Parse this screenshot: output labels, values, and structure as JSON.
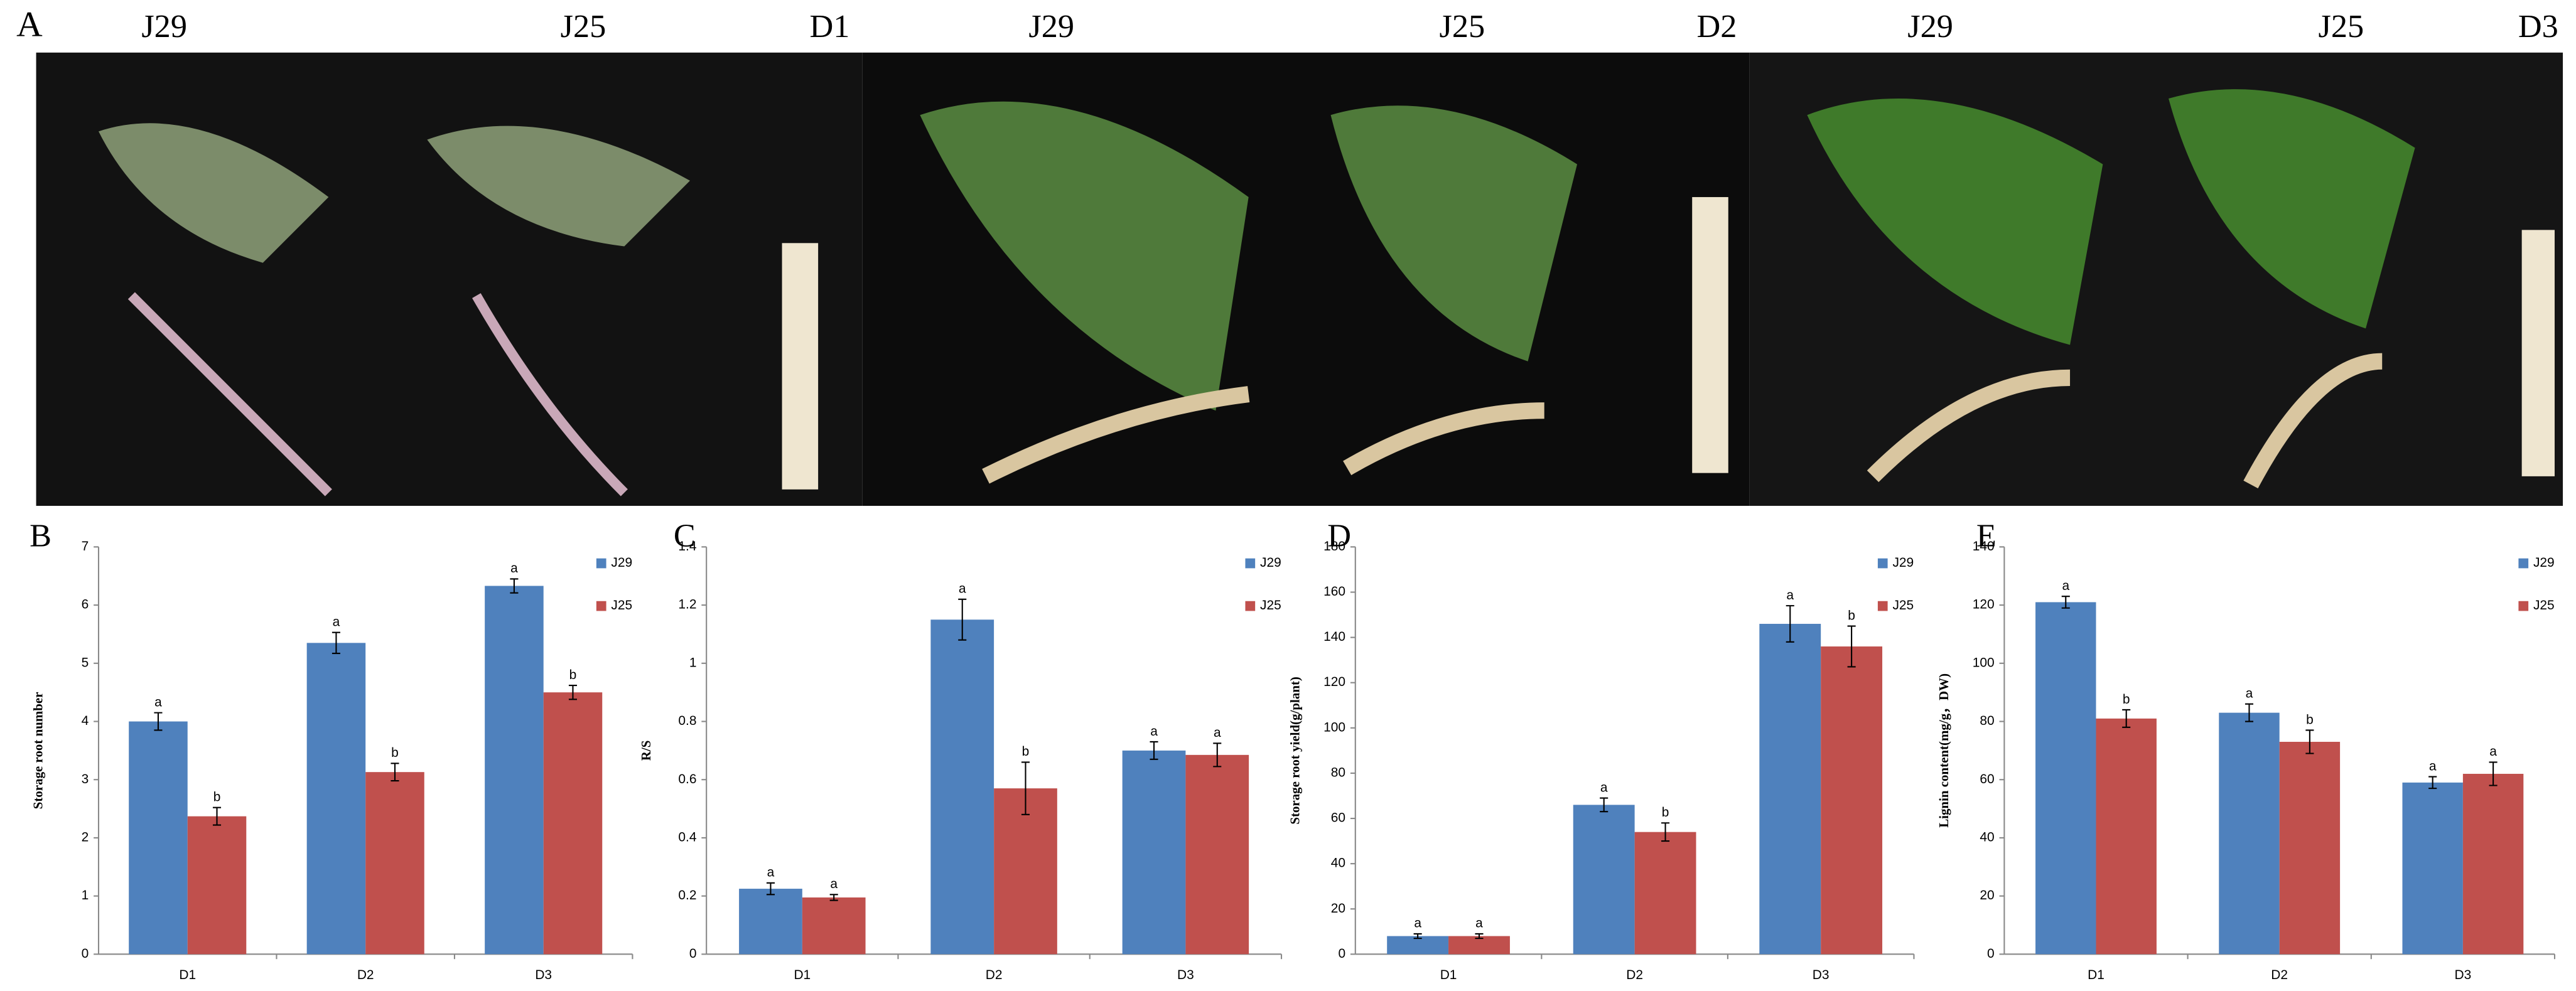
{
  "photo_panel": {
    "label": "A",
    "captions": [
      "J29",
      "J25",
      "D1",
      "J29",
      "J25",
      "D2",
      "J29",
      "J25",
      "D3"
    ]
  },
  "chart_data": [
    {
      "type": "bar",
      "panel": "B",
      "ylabel": "Storage root number",
      "categories": [
        "D1",
        "D2",
        "D3"
      ],
      "series": [
        {
          "name": "J29",
          "color": "#4f81bd",
          "values": [
            4.0,
            5.35,
            6.33
          ],
          "errors": [
            0.15,
            0.18,
            0.12
          ],
          "labels": [
            "a",
            "a",
            "a"
          ]
        },
        {
          "name": "J25",
          "color": "#c0504d",
          "values": [
            2.37,
            3.13,
            4.5
          ],
          "errors": [
            0.15,
            0.15,
            0.12
          ],
          "labels": [
            "b",
            "b",
            "b"
          ]
        }
      ],
      "ylim": [
        0,
        7
      ],
      "yticks": [
        0,
        1,
        2,
        3,
        4,
        5,
        6,
        7
      ],
      "legend": "upper right"
    },
    {
      "type": "bar",
      "panel": "C",
      "ylabel": "R/S",
      "categories": [
        "D1",
        "D2",
        "D3"
      ],
      "series": [
        {
          "name": "J29",
          "color": "#4f81bd",
          "values": [
            0.225,
            1.15,
            0.7
          ],
          "errors": [
            0.02,
            0.07,
            0.03
          ],
          "labels": [
            "a",
            "a",
            "a"
          ]
        },
        {
          "name": "J25",
          "color": "#c0504d",
          "values": [
            0.195,
            0.57,
            0.685
          ],
          "errors": [
            0.01,
            0.09,
            0.04
          ],
          "labels": [
            "a",
            "b",
            "a"
          ]
        }
      ],
      "ylim": [
        0,
        1.4
      ],
      "yticks": [
        0,
        0.2,
        0.4,
        0.6,
        0.8,
        1,
        1.2,
        1.4
      ],
      "legend": "upper right"
    },
    {
      "type": "bar",
      "panel": "D",
      "ylabel": "Storage root yield(g/plant)",
      "categories": [
        "D1",
        "D2",
        "D3"
      ],
      "series": [
        {
          "name": "J29",
          "color": "#4f81bd",
          "values": [
            8,
            66,
            146
          ],
          "errors": [
            1,
            3,
            8
          ],
          "labels": [
            "a",
            "a",
            "a"
          ]
        },
        {
          "name": "J25",
          "color": "#c0504d",
          "values": [
            8,
            54,
            136
          ],
          "errors": [
            1,
            4,
            9
          ],
          "labels": [
            "a",
            "b",
            "b"
          ]
        }
      ],
      "ylim": [
        0,
        180
      ],
      "yticks": [
        0,
        20,
        40,
        60,
        80,
        100,
        120,
        140,
        160,
        180
      ],
      "legend": "upper right"
    },
    {
      "type": "bar",
      "panel": "E",
      "ylabel": "Lignin content(mg/g，DW)",
      "categories": [
        "D1",
        "D2",
        "D3"
      ],
      "series": [
        {
          "name": "J29",
          "color": "#4f81bd",
          "values": [
            121,
            83,
            59
          ],
          "errors": [
            2,
            3,
            2
          ],
          "labels": [
            "a",
            "a",
            "a"
          ]
        },
        {
          "name": "J25",
          "color": "#c0504d",
          "values": [
            81,
            73,
            62
          ],
          "errors": [
            3,
            4,
            4
          ],
          "labels": [
            "b",
            "b",
            "a"
          ]
        }
      ],
      "ylim": [
        0,
        140
      ],
      "yticks": [
        0,
        20,
        40,
        60,
        80,
        100,
        120,
        140
      ],
      "legend": "upper right"
    }
  ]
}
